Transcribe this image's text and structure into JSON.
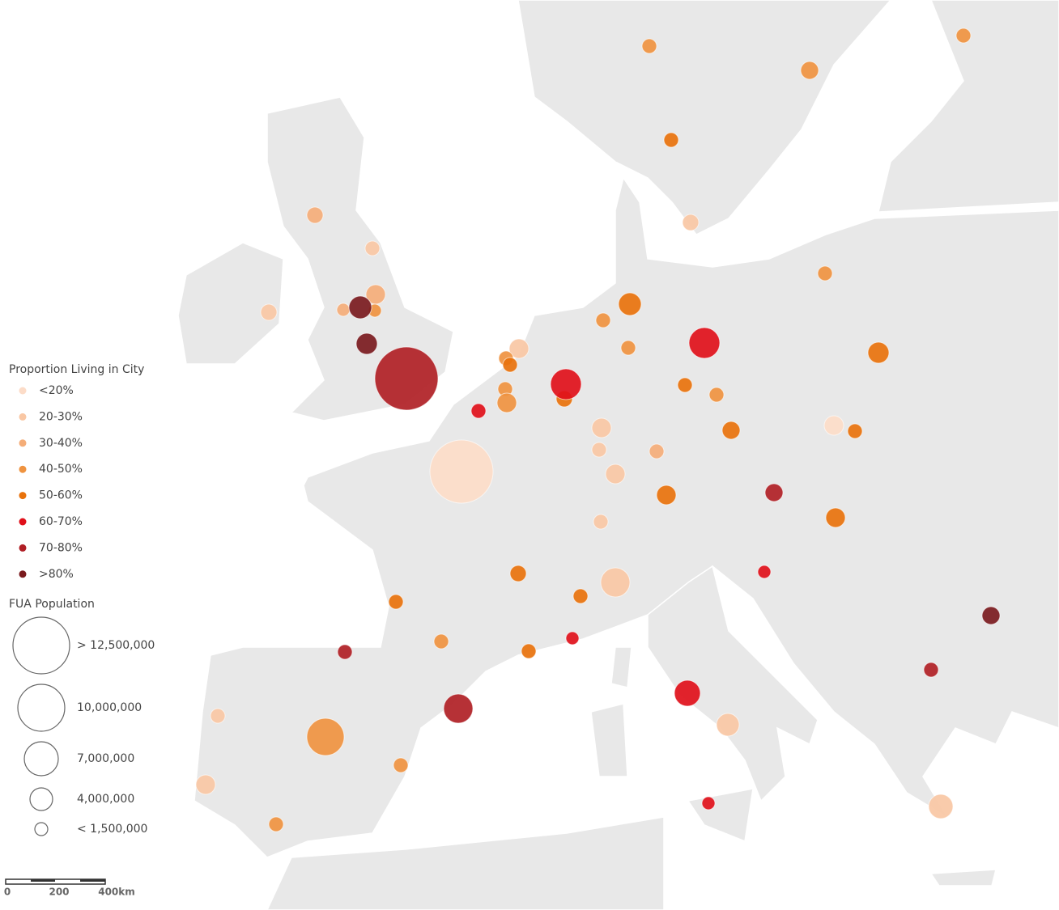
{
  "legend": {
    "title": "Proportion Living in City",
    "items": [
      {
        "label": "<20%",
        "color": "#fcdcc8"
      },
      {
        "label": "20-30%",
        "color": "#f9c7a4"
      },
      {
        "label": "30-40%",
        "color": "#f4ad78"
      },
      {
        "label": "40-50%",
        "color": "#ef9340"
      },
      {
        "label": "50-60%",
        "color": "#e8720c"
      },
      {
        "label": "60-70%",
        "color": "#e0101a"
      },
      {
        "label": "70-80%",
        "color": "#b01f25"
      },
      {
        "label": ">80%",
        "color": "#7a1a1e"
      }
    ]
  },
  "size_legend": {
    "title": "FUA Population",
    "items": [
      "> 12,500,000",
      "10,000,000",
      "7,000,000",
      "4,000,000",
      "< 1,500,000"
    ]
  },
  "scale_bar": {
    "labels": [
      "0",
      "200",
      "400km"
    ]
  }
}
